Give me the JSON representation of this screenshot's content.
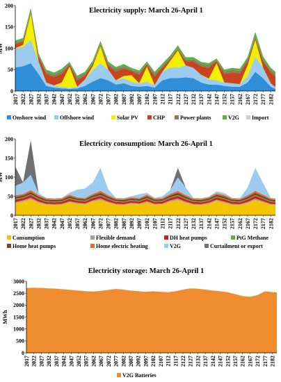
{
  "chart_data": [
    {
      "type": "area",
      "title": "Electricity supply: March 26-April 1",
      "ylabel": "MW",
      "xlabel": "",
      "ylim": [
        0,
        200
      ],
      "yticks": [
        0,
        50,
        100,
        150,
        200
      ],
      "grid": false,
      "legend": "bottom",
      "x_tick_labels": [
        "2017",
        "2022",
        "2027",
        "2032",
        "2037",
        "2042",
        "2047",
        "2052",
        "2057",
        "2062",
        "2067",
        "2072",
        "2077",
        "2082",
        "2087",
        "2092",
        "2097",
        "2102",
        "2107",
        "2112",
        "2117",
        "2122",
        "2127",
        "2132",
        "2137",
        "2142",
        "2147",
        "2152",
        "2157",
        "2162",
        "2167",
        "2172",
        "2177",
        "2182"
      ],
      "x": [
        2017,
        2022,
        2027,
        2032,
        2037,
        2042,
        2047,
        2052,
        2057,
        2062,
        2067,
        2072,
        2077,
        2082,
        2087,
        2092,
        2097,
        2102,
        2107,
        2112,
        2117,
        2122,
        2127,
        2132,
        2137,
        2142,
        2147,
        2152,
        2157,
        2162,
        2167,
        2172,
        2177,
        2182,
        2185
      ],
      "stacked": true,
      "series": [
        {
          "name": "Onshore wind",
          "color": "#2f8fd8",
          "values": [
            55,
            58,
            65,
            40,
            12,
            8,
            6,
            5,
            6,
            12,
            22,
            30,
            25,
            15,
            18,
            12,
            10,
            12,
            8,
            25,
            30,
            30,
            32,
            30,
            20,
            15,
            15,
            12,
            10,
            10,
            20,
            45,
            30,
            10,
            5
          ]
        },
        {
          "name": "Offshore wind",
          "color": "#9ccbf0",
          "values": [
            45,
            45,
            55,
            30,
            8,
            5,
            4,
            2,
            4,
            15,
            28,
            35,
            25,
            10,
            12,
            10,
            8,
            10,
            6,
            20,
            25,
            25,
            28,
            24,
            18,
            12,
            10,
            8,
            8,
            6,
            15,
            35,
            25,
            8,
            4
          ]
        },
        {
          "name": "Solar PV",
          "color": "#f0f000",
          "values": [
            0,
            5,
            60,
            0,
            0,
            0,
            10,
            50,
            0,
            0,
            8,
            40,
            0,
            0,
            5,
            15,
            0,
            35,
            0,
            0,
            15,
            40,
            0,
            0,
            0,
            2,
            40,
            0,
            0,
            0,
            25,
            40,
            0,
            0,
            0
          ]
        },
        {
          "name": "CHP",
          "color": "#c8441c",
          "values": [
            10,
            8,
            3,
            10,
            20,
            20,
            20,
            5,
            15,
            10,
            5,
            3,
            10,
            20,
            18,
            10,
            20,
            5,
            20,
            10,
            5,
            3,
            10,
            15,
            20,
            25,
            5,
            20,
            25,
            25,
            10,
            5,
            15,
            25,
            25
          ]
        },
        {
          "name": "Power plants",
          "color": "#8c7a5c",
          "values": [
            3,
            2,
            1,
            3,
            5,
            5,
            6,
            2,
            5,
            3,
            2,
            1,
            3,
            6,
            5,
            3,
            5,
            2,
            6,
            3,
            2,
            1,
            3,
            5,
            5,
            6,
            2,
            5,
            6,
            6,
            3,
            1,
            3,
            6,
            6
          ]
        },
        {
          "name": "V2G",
          "color": "#5cb040",
          "values": [
            5,
            6,
            10,
            5,
            5,
            5,
            6,
            4,
            6,
            5,
            6,
            8,
            6,
            5,
            5,
            4,
            5,
            5,
            5,
            6,
            6,
            8,
            6,
            5,
            5,
            5,
            4,
            5,
            5,
            5,
            6,
            12,
            8,
            5,
            5
          ]
        },
        {
          "name": "Import",
          "color": "#d0d0d0",
          "values": [
            0,
            0,
            0,
            0,
            0,
            0,
            0,
            0,
            0,
            0,
            0,
            0,
            0,
            0,
            0,
            0,
            0,
            0,
            0,
            0,
            0,
            0,
            0,
            0,
            0,
            0,
            0,
            0,
            0,
            0,
            0,
            0,
            0,
            0,
            0
          ]
        }
      ]
    },
    {
      "type": "area",
      "title": "Electricity consumption: March 26-April 1",
      "ylabel": "MW",
      "xlabel": "",
      "ylim": [
        0,
        200
      ],
      "yticks": [
        0,
        50,
        100,
        150,
        200
      ],
      "grid": false,
      "legend": "bottom",
      "x_tick_labels": [
        "2017",
        "2022",
        "2027",
        "2032",
        "2037",
        "2042",
        "2047",
        "2052",
        "2057",
        "2062",
        "2067",
        "2072",
        "2077",
        "2082",
        "2087",
        "2092",
        "2097",
        "2102",
        "2107",
        "2112",
        "2117",
        "2122",
        "2127",
        "2132",
        "2137",
        "2142",
        "2147",
        "2152",
        "2157",
        "2162",
        "2167",
        "2172",
        "2177",
        "2182"
      ],
      "x": [
        2017,
        2022,
        2027,
        2032,
        2037,
        2042,
        2047,
        2052,
        2057,
        2062,
        2067,
        2072,
        2077,
        2082,
        2087,
        2092,
        2097,
        2102,
        2107,
        2112,
        2117,
        2122,
        2127,
        2132,
        2137,
        2142,
        2147,
        2152,
        2157,
        2162,
        2167,
        2172,
        2177,
        2182,
        2185
      ],
      "stacked": true,
      "series": [
        {
          "name": "Consumption",
          "color": "#f5c400",
          "values": [
            32,
            36,
            42,
            33,
            28,
            27,
            28,
            34,
            30,
            29,
            36,
            40,
            33,
            28,
            27,
            30,
            29,
            34,
            28,
            29,
            36,
            40,
            33,
            28,
            27,
            30,
            38,
            33,
            28,
            27,
            32,
            40,
            34,
            28,
            27
          ]
        },
        {
          "name": "Flexible demand",
          "color": "#a0a0a0",
          "values": [
            3,
            3,
            4,
            3,
            2,
            2,
            2,
            3,
            3,
            2,
            3,
            4,
            3,
            2,
            2,
            3,
            2,
            3,
            2,
            2,
            3,
            4,
            3,
            2,
            2,
            3,
            3,
            3,
            2,
            2,
            3,
            4,
            3,
            2,
            2
          ]
        },
        {
          "name": "DH heat pumps",
          "color": "#d81c1c",
          "values": [
            6,
            6,
            7,
            6,
            5,
            5,
            5,
            6,
            5,
            5,
            6,
            7,
            6,
            5,
            5,
            5,
            5,
            6,
            5,
            5,
            6,
            7,
            6,
            5,
            5,
            5,
            6,
            6,
            5,
            5,
            6,
            7,
            6,
            5,
            5
          ]
        },
        {
          "name": "PtG Methane",
          "color": "#5cb040",
          "values": [
            2,
            2,
            2,
            2,
            2,
            2,
            2,
            2,
            2,
            2,
            2,
            2,
            2,
            2,
            2,
            2,
            2,
            2,
            2,
            2,
            2,
            2,
            2,
            2,
            2,
            2,
            2,
            2,
            2,
            2,
            2,
            2,
            2,
            2,
            2
          ]
        },
        {
          "name": "Home heat pumps",
          "color": "#6e4a2e",
          "values": [
            5,
            5,
            6,
            5,
            4,
            4,
            4,
            5,
            4,
            4,
            5,
            6,
            5,
            4,
            4,
            4,
            4,
            5,
            4,
            4,
            5,
            6,
            5,
            4,
            4,
            4,
            5,
            5,
            4,
            4,
            5,
            6,
            5,
            4,
            4
          ]
        },
        {
          "name": "Home electric heating",
          "color": "#e86a28",
          "values": [
            4,
            4,
            5,
            4,
            3,
            3,
            3,
            4,
            3,
            3,
            4,
            5,
            4,
            3,
            3,
            3,
            3,
            4,
            3,
            3,
            4,
            5,
            4,
            3,
            3,
            3,
            4,
            4,
            3,
            3,
            4,
            5,
            4,
            3,
            3
          ]
        },
        {
          "name": "V2G",
          "color": "#9ccbf0",
          "values": [
            25,
            30,
            40,
            5,
            2,
            2,
            2,
            5,
            20,
            25,
            30,
            60,
            15,
            2,
            2,
            3,
            10,
            5,
            2,
            5,
            10,
            35,
            20,
            2,
            2,
            2,
            5,
            5,
            2,
            2,
            20,
            60,
            30,
            2,
            2
          ]
        },
        {
          "name": "Curtailment or export",
          "color": "#707070",
          "values": [
            50,
            0,
            90,
            0,
            0,
            0,
            0,
            0,
            0,
            0,
            0,
            0,
            0,
            0,
            0,
            0,
            0,
            0,
            0,
            0,
            0,
            25,
            0,
            0,
            0,
            0,
            0,
            0,
            0,
            0,
            0,
            0,
            0,
            0,
            0
          ]
        }
      ]
    },
    {
      "type": "area",
      "title": "Electricity storage: March 26-April 1",
      "ylabel": "MWh",
      "xlabel": "",
      "ylim": [
        0,
        3000
      ],
      "yticks": [
        0,
        500,
        1000,
        1500,
        2000,
        2500,
        3000
      ],
      "grid": false,
      "legend": "bottom",
      "x_tick_labels": [
        "2017",
        "2022",
        "2027",
        "2032",
        "2037",
        "2042",
        "2047",
        "2052",
        "2057",
        "2062",
        "2067",
        "2072",
        "2077",
        "2082",
        "2087",
        "2092",
        "2097",
        "2102",
        "2107",
        "2112",
        "2117",
        "2122",
        "2127",
        "2132",
        "2137",
        "2142",
        "2147",
        "2152",
        "2157",
        "2162",
        "2167",
        "2172",
        "2177",
        "2182"
      ],
      "x": [
        2017,
        2022,
        2027,
        2032,
        2037,
        2042,
        2047,
        2052,
        2057,
        2062,
        2067,
        2072,
        2077,
        2082,
        2087,
        2092,
        2097,
        2102,
        2107,
        2112,
        2117,
        2122,
        2127,
        2132,
        2137,
        2142,
        2147,
        2152,
        2157,
        2162,
        2167,
        2172,
        2177,
        2182,
        2185
      ],
      "stacked": true,
      "series": [
        {
          "name": "V2G Batteries",
          "color": "#f08c30",
          "values": [
            2720,
            2730,
            2720,
            2700,
            2690,
            2660,
            2640,
            2610,
            2580,
            2570,
            2600,
            2640,
            2680,
            2650,
            2610,
            2580,
            2560,
            2580,
            2560,
            2540,
            2580,
            2650,
            2700,
            2690,
            2650,
            2610,
            2580,
            2540,
            2460,
            2380,
            2350,
            2420,
            2580,
            2550,
            2530
          ]
        }
      ]
    }
  ]
}
